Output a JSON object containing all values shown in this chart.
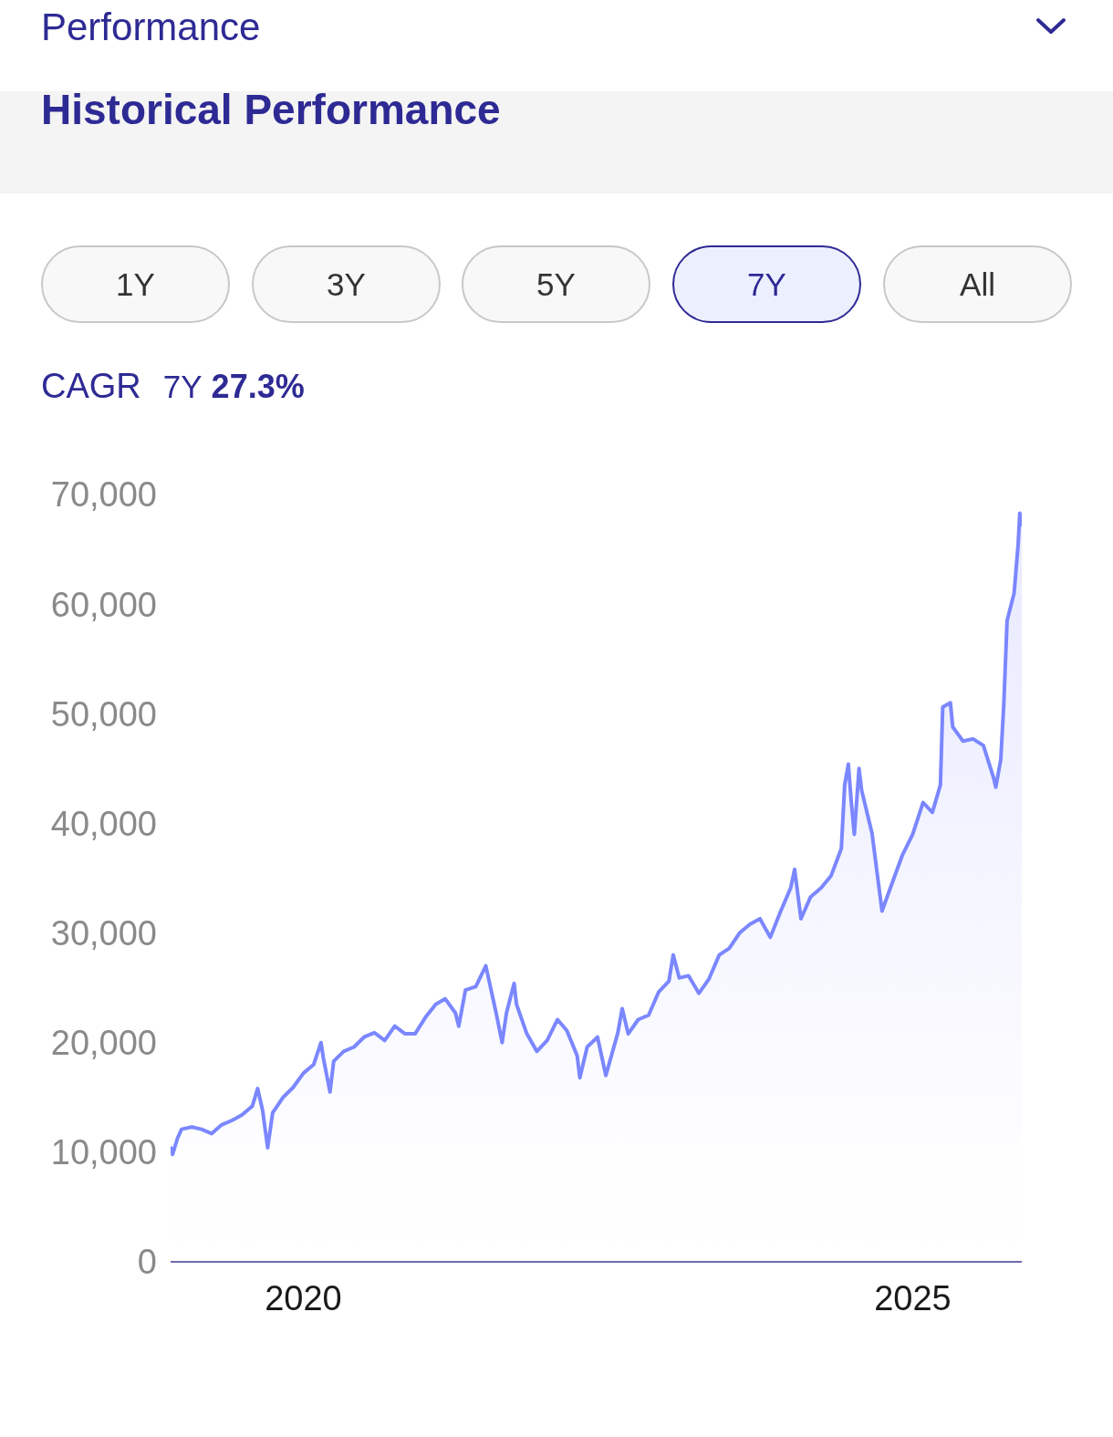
{
  "chart_data": {
    "type": "area",
    "title": "Performance",
    "subtitle": "Historical Performance",
    "annotations": [
      "1Y",
      "3Y",
      "5Y",
      "7Y",
      "All",
      "CAGR",
      "7Y",
      "27.3%"
    ],
    "x": [
      "2018-11-29",
      "2018-12-05",
      "2018-12-20",
      "2019-01-01",
      "2019-02-01",
      "2019-03-01",
      "2019-04-01",
      "2019-05-01",
      "2019-06-01",
      "2019-07-01",
      "2019-08-01",
      "2019-08-17",
      "2019-09-01",
      "2019-09-16",
      "2019-10-01",
      "2019-11-01",
      "2019-12-01",
      "2020-01-01",
      "2020-02-01",
      "2020-02-23",
      "2020-03-01",
      "2020-03-21",
      "2020-04-01",
      "2020-05-01",
      "2020-06-01",
      "2020-07-01",
      "2020-08-01",
      "2020-09-01",
      "2020-10-01",
      "2020-11-01",
      "2020-12-01",
      "2021-01-01",
      "2021-02-01",
      "2021-03-01",
      "2021-04-01",
      "2021-04-11",
      "2021-05-01",
      "2021-06-01",
      "2021-07-01",
      "2021-08-01",
      "2021-08-19",
      "2021-09-01",
      "2021-09-24",
      "2021-10-01",
      "2021-11-01",
      "2021-12-01",
      "2022-01-01",
      "2022-02-01",
      "2022-03-01",
      "2022-04-01",
      "2022-04-09",
      "2022-05-01",
      "2022-06-01",
      "2022-06-26",
      "2022-08-01",
      "2022-08-14",
      "2022-09-01",
      "2022-10-01",
      "2022-11-01",
      "2022-12-01",
      "2023-01-01",
      "2023-01-14",
      "2023-02-01",
      "2023-03-01",
      "2023-04-01",
      "2023-05-01",
      "2023-06-01",
      "2023-07-01",
      "2023-08-01",
      "2023-09-01",
      "2023-10-01",
      "2023-11-01",
      "2023-12-01",
      "2024-01-01",
      "2024-01-13",
      "2024-02-01",
      "2024-03-01",
      "2024-04-01",
      "2024-05-01",
      "2024-06-01",
      "2024-06-11",
      "2024-06-22",
      "2024-07-01",
      "2024-07-10",
      "2024-07-24",
      "2024-08-01",
      "2024-09-01",
      "2024-10-01",
      "2024-11-01",
      "2024-12-01",
      "2025-01-01",
      "2025-02-01",
      "2025-03-01",
      "2025-03-25",
      "2025-04-01",
      "2025-04-24",
      "2025-05-01",
      "2025-06-01",
      "2025-07-01",
      "2025-08-01",
      "2025-09-01",
      "2025-09-07",
      "2025-09-22",
      "2025-10-01",
      "2025-10-11",
      "2025-11-01",
      "2025-11-13",
      "2025-11-18",
      "2025-11-24"
    ],
    "values": [
      10500,
      9800,
      11300,
      12100,
      12300,
      12100,
      11700,
      12500,
      12900,
      13400,
      14200,
      15800,
      13800,
      10400,
      13600,
      15000,
      15900,
      17200,
      18000,
      20000,
      18600,
      15500,
      18300,
      19200,
      19600,
      20500,
      20900,
      20200,
      21500,
      20800,
      20800,
      22300,
      23500,
      24000,
      22700,
      21500,
      24800,
      25100,
      27000,
      22700,
      20000,
      22700,
      25400,
      23500,
      20800,
      19200,
      20200,
      22100,
      21100,
      18800,
      16800,
      19600,
      20500,
      17000,
      20900,
      23100,
      20800,
      22100,
      22500,
      24600,
      25600,
      28000,
      25900,
      26100,
      24500,
      25800,
      28000,
      28600,
      30000,
      30800,
      31300,
      29600,
      31900,
      34100,
      35800,
      31300,
      33300,
      34100,
      35200,
      37700,
      43500,
      45400,
      41900,
      39000,
      45000,
      43000,
      39100,
      32000,
      34600,
      37100,
      39000,
      41900,
      41000,
      43500,
      50600,
      51000,
      48800,
      47500,
      47700,
      47100,
      44100,
      43300,
      45800,
      50800,
      58500,
      61000,
      65400,
      68300,
      67100
    ],
    "color": "#7b87ff",
    "xlim": [
      "2018-11-29",
      "2025-11-24"
    ],
    "xticks": [
      "2020",
      "2025"
    ],
    "ylim": [
      0,
      70000
    ],
    "yticks": [
      0,
      {
        "value": 10000,
        "label": "10,000"
      },
      {
        "value": 20000,
        "label": "20,000"
      },
      {
        "value": 30000,
        "label": "30,000"
      },
      {
        "value": 40000,
        "label": "40,000"
      },
      {
        "value": 50000,
        "label": "50,000"
      },
      {
        "value": 60000,
        "label": "60,000"
      },
      {
        "value": 70000,
        "label": "70,000"
      }
    ]
  }
}
